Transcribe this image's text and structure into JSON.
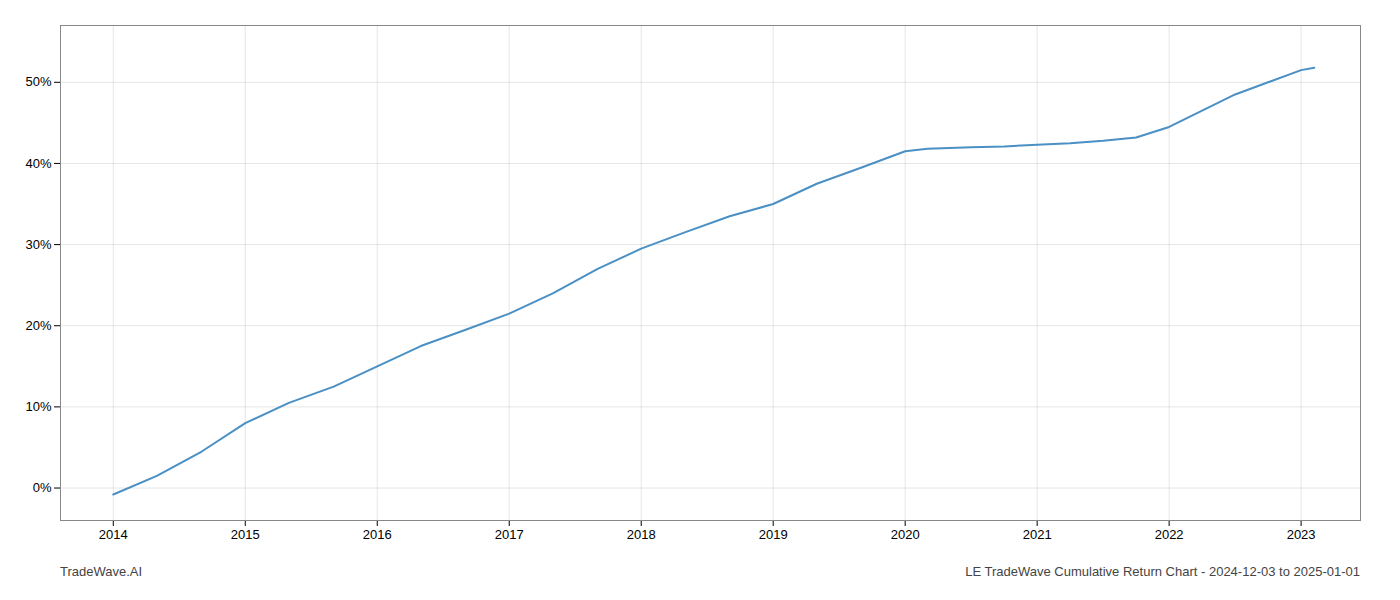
{
  "chart_data": {
    "type": "line",
    "x": [
      2014.0,
      2014.33,
      2014.67,
      2015.0,
      2015.33,
      2015.67,
      2016.0,
      2016.33,
      2016.67,
      2017.0,
      2017.33,
      2017.67,
      2018.0,
      2018.33,
      2018.67,
      2019.0,
      2019.33,
      2019.67,
      2020.0,
      2020.17,
      2020.5,
      2020.75,
      2021.0,
      2021.25,
      2021.5,
      2021.75,
      2022.0,
      2022.25,
      2022.5,
      2022.75,
      2023.0,
      2023.1
    ],
    "values": [
      -0.8,
      1.5,
      4.5,
      8.0,
      10.5,
      12.5,
      15.0,
      17.5,
      19.5,
      21.5,
      24.0,
      27.0,
      29.5,
      31.5,
      33.5,
      35.0,
      37.5,
      39.5,
      41.5,
      41.8,
      42.0,
      42.1,
      42.3,
      42.5,
      42.8,
      43.2,
      44.5,
      46.5,
      48.5,
      50.0,
      51.5,
      51.8
    ],
    "color": "#4a90c4",
    "xlim": [
      2013.6,
      2023.45
    ],
    "ylim": [
      -4,
      57
    ],
    "xticks": [
      2014,
      2015,
      2016,
      2017,
      2018,
      2019,
      2020,
      2021,
      2022,
      2023
    ],
    "yticks": [
      {
        "value": 0,
        "label": "0%"
      },
      {
        "value": 10,
        "label": "10%"
      },
      {
        "value": 20,
        "label": "20%"
      },
      {
        "value": 30,
        "label": "30%"
      },
      {
        "value": 40,
        "label": "40%"
      },
      {
        "value": 50,
        "label": "50%"
      }
    ],
    "grid": true,
    "annotations": [
      "TradeWave.AI",
      "LE TradeWave Cumulative Return Chart - 2024-12-03 to 2025-01-01"
    ]
  }
}
